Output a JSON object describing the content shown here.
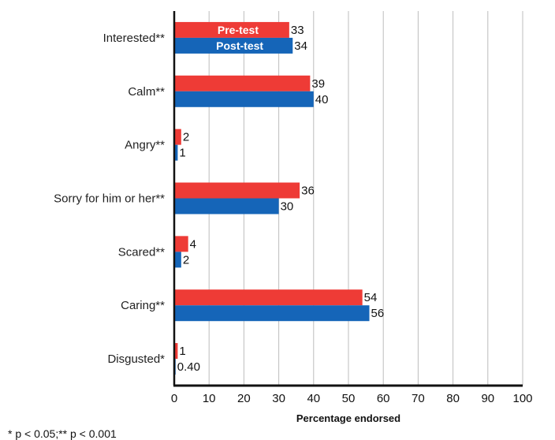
{
  "chart_data": {
    "type": "bar",
    "orientation": "horizontal",
    "categories": [
      "Interested**",
      "Calm**",
      "Angry**",
      "Sorry for him or her**",
      "Scared**",
      "Caring**",
      "Disgusted*"
    ],
    "series": [
      {
        "name": "Pre-test",
        "values": [
          33,
          39,
          2,
          36,
          4,
          54,
          1
        ],
        "labels": [
          "33",
          "39",
          "2",
          "36",
          "4",
          "54",
          "1"
        ]
      },
      {
        "name": "Post-test",
        "values": [
          34,
          40,
          1,
          30,
          2,
          56,
          0.4
        ],
        "labels": [
          "34",
          "40",
          "1",
          "30",
          "2",
          "56",
          "0.40"
        ]
      }
    ],
    "xlabel": "Percentage endorsed",
    "ylabel": "",
    "xlim": [
      0,
      100
    ],
    "xticks": [
      "0",
      "10",
      "20",
      "30",
      "40",
      "50",
      "60",
      "70",
      "80",
      "90",
      "100"
    ],
    "grid": "vertical",
    "legend": "inside-top, on first category bars",
    "colors": {
      "Pre-test": "#ee3b36",
      "Post-test": "#1565b8"
    }
  },
  "footnote": "* p < 0.05;** p < 0.001"
}
